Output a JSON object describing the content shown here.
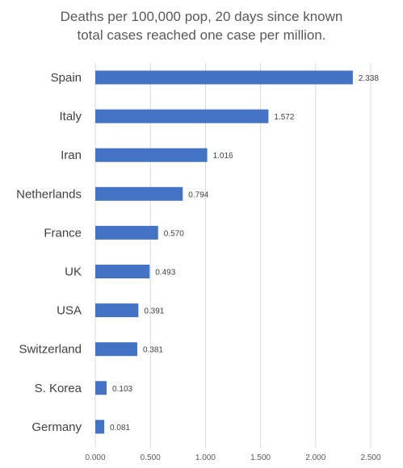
{
  "chart_data": {
    "type": "bar",
    "orientation": "horizontal",
    "title_lines": [
      "Deaths per 100,000 pop, 20 days since known",
      "total cases reached one case per million."
    ],
    "categories": [
      "Spain",
      "Italy",
      "Iran",
      "Netherlands",
      "France",
      "UK",
      "USA",
      "Switzerland",
      "S. Korea",
      "Germany"
    ],
    "values": [
      2.338,
      1.572,
      1.016,
      0.794,
      0.57,
      0.493,
      0.391,
      0.381,
      0.103,
      0.081
    ],
    "value_labels": [
      "2.338",
      "1.572",
      "1.016",
      "0.794",
      "0.570",
      "0.493",
      "0.391",
      "0.381",
      "0.103",
      "0.081"
    ],
    "xlim": [
      0,
      2.5
    ],
    "x_ticks": [
      0,
      0.5,
      1.0,
      1.5,
      2.0,
      2.5
    ],
    "x_tick_labels": [
      "0.000",
      "0.500",
      "1.000",
      "1.500",
      "2.000",
      "2.500"
    ],
    "xlabel": "",
    "ylabel": "",
    "grid": true,
    "legend": "none",
    "bar_color": "#4472c4",
    "grid_color": "#d9d9d9",
    "text_color": "#595959",
    "label_color": "#404040"
  }
}
